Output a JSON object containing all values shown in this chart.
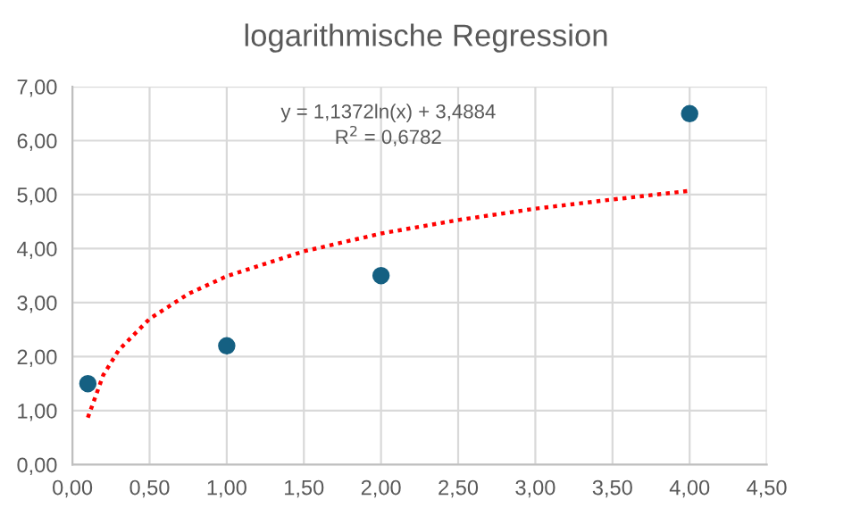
{
  "chart_data": {
    "type": "scatter",
    "title": "logarithmische Regression",
    "series": [
      {
        "color": "#156082",
        "x": [
          0.1,
          1,
          2,
          4
        ],
        "values": [
          1.5,
          2.2,
          3.5,
          6.5
        ],
        "marker": "circle"
      },
      {
        "type": "line",
        "color": "#ff0000",
        "line_style": "dotted",
        "marker": "none",
        "x": [
          0.1,
          0.2,
          0.3,
          0.5,
          0.75,
          1,
          1.5,
          2,
          2.5,
          3,
          3.5,
          4
        ],
        "values": [
          0.87,
          1.66,
          2.12,
          2.7,
          3.16,
          3.49,
          3.95,
          4.28,
          4.53,
          4.74,
          4.91,
          5.07
        ]
      }
    ],
    "annotations": [
      "y = 1,1372ln(x) + 3,4884",
      "R$^{2}$ = 0,6782"
    ],
    "xlim": [
      0,
      4.5
    ],
    "ylim": [
      0,
      7
    ],
    "xticks": [
      {
        "value": 0,
        "label": "0,00"
      },
      {
        "value": 0.5,
        "label": "0,50"
      },
      {
        "value": 1,
        "label": "1,00"
      },
      {
        "value": 1.5,
        "label": "1,50"
      },
      {
        "value": 2,
        "label": "2,00"
      },
      {
        "value": 2.5,
        "label": "2,50"
      },
      {
        "value": 3,
        "label": "3,00"
      },
      {
        "value": 3.5,
        "label": "3,50"
      },
      {
        "value": 4,
        "label": "4,00"
      },
      {
        "value": 4.5,
        "label": "4,50"
      }
    ],
    "yticks": [
      {
        "value": 0,
        "label": "0,00"
      },
      {
        "value": 1,
        "label": "1,00"
      },
      {
        "value": 2,
        "label": "2,00"
      },
      {
        "value": 3,
        "label": "3,00"
      },
      {
        "value": 4,
        "label": "4,00"
      },
      {
        "value": 5,
        "label": "5,00"
      },
      {
        "value": 6,
        "label": "6,00"
      },
      {
        "value": 7,
        "label": "7,00"
      }
    ],
    "grid": true,
    "legend": false
  }
}
